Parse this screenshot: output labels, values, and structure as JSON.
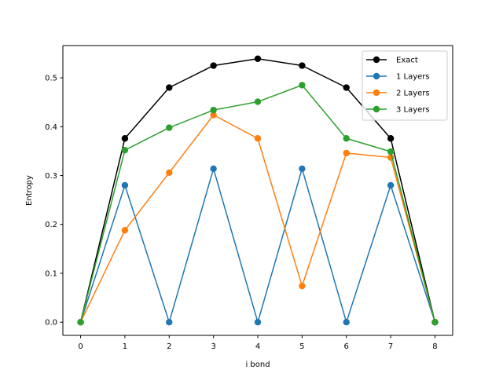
{
  "chart_data": {
    "type": "line",
    "xlabel": "i bond",
    "ylabel": "Entropy",
    "xlim": [
      -0.4,
      8.4
    ],
    "ylim": [
      -0.027,
      0.566
    ],
    "xticks": [
      0,
      1,
      2,
      3,
      4,
      5,
      6,
      7,
      8
    ],
    "yticks": [
      0.0,
      0.1,
      0.2,
      0.3,
      0.4,
      0.5
    ],
    "ytick_labels": [
      "0.0",
      "0.1",
      "0.2",
      "0.3",
      "0.4",
      "0.5"
    ],
    "grid": false,
    "legend_position": "top-right",
    "x": [
      0,
      1,
      2,
      3,
      4,
      5,
      6,
      7,
      8
    ],
    "series": [
      {
        "name": "Exact",
        "color": "#000000",
        "values": [
          0.0,
          0.376,
          0.48,
          0.525,
          0.539,
          0.525,
          0.48,
          0.376,
          0.0
        ]
      },
      {
        "name": "1 Layers",
        "color": "#1f77b4",
        "values": [
          0.0,
          0.28,
          0.0,
          0.314,
          0.0,
          0.314,
          0.0,
          0.28,
          0.0
        ]
      },
      {
        "name": "2 Layers",
        "color": "#ff7f0e",
        "values": [
          0.0,
          0.188,
          0.306,
          0.424,
          0.376,
          0.074,
          0.346,
          0.337,
          0.0
        ]
      },
      {
        "name": "3 Layers",
        "color": "#2ca02c",
        "values": [
          0.0,
          0.352,
          0.398,
          0.434,
          0.451,
          0.485,
          0.376,
          0.349,
          0.0
        ]
      }
    ]
  }
}
